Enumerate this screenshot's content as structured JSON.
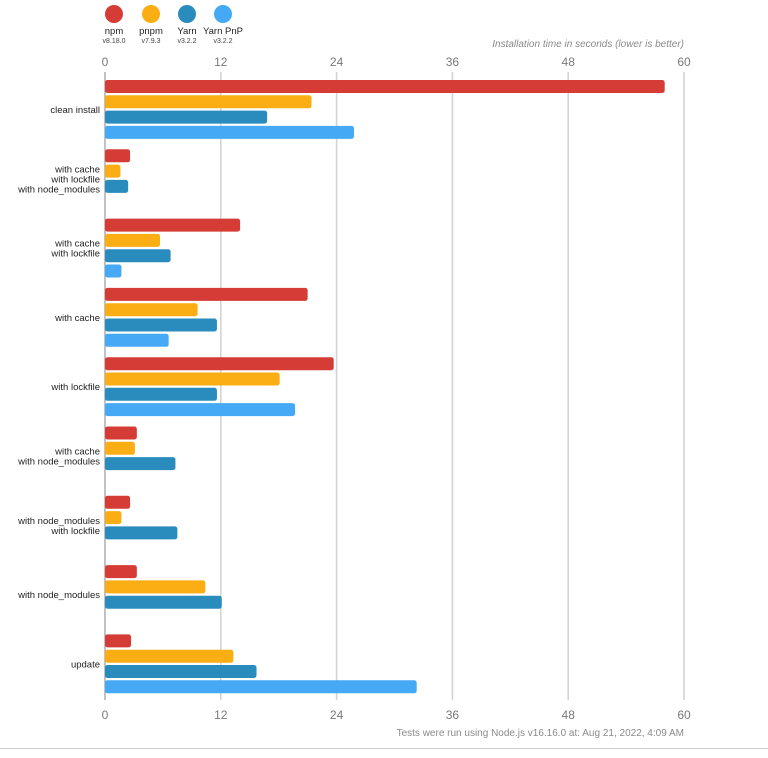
{
  "chart_data": {
    "type": "bar",
    "orientation": "horizontal",
    "title": "",
    "axis_note": "Installation time in seconds (lower is better)",
    "footnote": "Tests were run using Node.js v16.16.0 at: Aug 21, 2022, 4:09 AM",
    "xlim": [
      0,
      60
    ],
    "x_ticks": [
      "0",
      "12",
      "24",
      "36",
      "48",
      "60"
    ],
    "grid": true,
    "legend_position": "top-left",
    "categories": [
      [
        "clean install"
      ],
      [
        "with cache",
        "with lockfile",
        "with node_modules"
      ],
      [
        "with cache",
        "with lockfile"
      ],
      [
        "with cache"
      ],
      [
        "with lockfile"
      ],
      [
        "with cache",
        "with node_modules"
      ],
      [
        "with node_modules",
        "with lockfile"
      ],
      [
        "with node_modules"
      ],
      [
        "update"
      ]
    ],
    "series": [
      {
        "name": "npm",
        "version": "v8.18.0",
        "color": "#d43c35",
        "values": [
          58.0,
          2.6,
          14.0,
          21.0,
          23.7,
          3.3,
          2.6,
          3.3,
          2.7
        ]
      },
      {
        "name": "pnpm",
        "version": "v7.9.3",
        "color": "#fbad14",
        "values": [
          21.4,
          1.6,
          5.7,
          9.6,
          18.1,
          3.1,
          1.7,
          10.4,
          13.3
        ]
      },
      {
        "name": "Yarn",
        "version": "v3.2.2",
        "color": "#2a8cbd",
        "values": [
          16.8,
          2.4,
          6.8,
          11.6,
          11.6,
          7.3,
          7.5,
          12.1,
          15.7
        ]
      },
      {
        "name": "Yarn PnP",
        "version": "v3.2.2",
        "color": "#45a9f5",
        "values": [
          25.8,
          null,
          1.7,
          6.6,
          19.7,
          null,
          null,
          null,
          32.3
        ]
      }
    ]
  }
}
